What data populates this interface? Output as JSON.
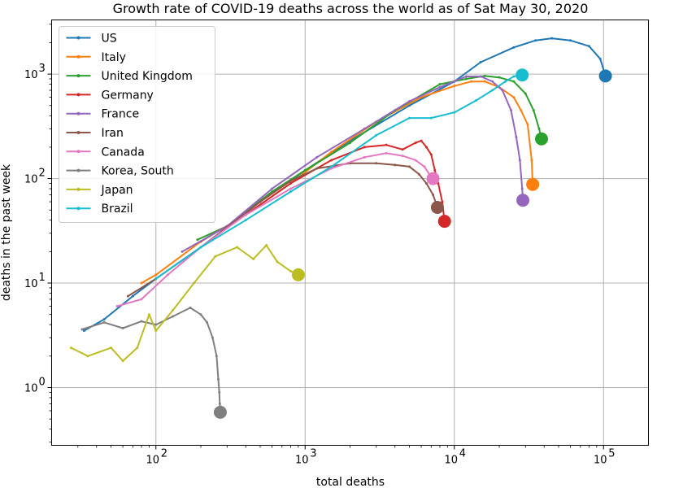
{
  "chart_data": {
    "type": "line",
    "title": "Growth rate of COVID-19 deaths across the world as of Sat May 30, 2020",
    "xlabel": "total deaths",
    "ylabel": "deaths in the past week",
    "xscale": "log",
    "yscale": "log",
    "xlim": [
      20,
      200000
    ],
    "ylim": [
      0.28,
      3300
    ],
    "x_ticks": [
      {
        "value": 100,
        "label": "10",
        "exp": "2"
      },
      {
        "value": 1000,
        "label": "10",
        "exp": "3"
      },
      {
        "value": 10000,
        "label": "10",
        "exp": "4"
      },
      {
        "value": 100000,
        "label": "10",
        "exp": "5"
      }
    ],
    "y_ticks": [
      {
        "value": 1,
        "label": "10",
        "exp": "0"
      },
      {
        "value": 10,
        "label": "10",
        "exp": "1"
      },
      {
        "value": 100,
        "label": "10",
        "exp": "2"
      },
      {
        "value": 1000,
        "label": "10",
        "exp": "3"
      }
    ],
    "grid": true,
    "legend_position": "top-left",
    "series": [
      {
        "name": "US",
        "color": "#1f77b4",
        "x": [
          33,
          45,
          70,
          100,
          200,
          500,
          1000,
          2000,
          5000,
          10000,
          15000,
          25000,
          35000,
          45000,
          60000,
          80000,
          95000,
          103000
        ],
        "y": [
          3.5,
          4.5,
          7.5,
          11,
          22,
          60,
          120,
          230,
          500,
          850,
          1300,
          1800,
          2100,
          2200,
          2100,
          1850,
          1400,
          960
        ]
      },
      {
        "name": "Italy",
        "color": "#ff7f0e",
        "x": [
          80,
          100,
          200,
          400,
          800,
          1500,
          3000,
          6000,
          10000,
          13000,
          16000,
          20000,
          25000,
          28000,
          31000,
          33000,
          33500
        ],
        "y": [
          10,
          12,
          25,
          45,
          90,
          180,
          350,
          600,
          770,
          850,
          850,
          750,
          600,
          450,
          330,
          150,
          88
        ]
      },
      {
        "name": "United Kingdom",
        "color": "#2ca02c",
        "x": [
          190,
          300,
          600,
          1000,
          2000,
          4000,
          8000,
          12000,
          16000,
          20000,
          25000,
          30000,
          34000,
          37000,
          38400
        ],
        "y": [
          26,
          35,
          75,
          120,
          220,
          450,
          800,
          900,
          960,
          930,
          850,
          650,
          450,
          300,
          240
        ]
      },
      {
        "name": "Germany",
        "color": "#d62728",
        "x": [
          200,
          400,
          800,
          1500,
          2500,
          3500,
          4500,
          5500,
          6000,
          6500,
          7000,
          7400,
          7800,
          8300,
          8600
        ],
        "y": [
          25,
          45,
          90,
          150,
          200,
          210,
          190,
          220,
          230,
          200,
          170,
          120,
          90,
          60,
          39
        ]
      },
      {
        "name": "France",
        "color": "#9467bd",
        "x": [
          150,
          300,
          600,
          1200,
          2500,
          5000,
          8000,
          12000,
          15000,
          18000,
          21000,
          24000,
          26000,
          27500,
          28500,
          28800
        ],
        "y": [
          20,
          35,
          80,
          160,
          300,
          550,
          750,
          950,
          950,
          850,
          700,
          450,
          250,
          150,
          80,
          62
        ]
      },
      {
        "name": "Iran",
        "color": "#8c564b",
        "x": [
          65,
          100,
          200,
          500,
          800,
          1200,
          2000,
          3000,
          4000,
          5000,
          5800,
          6500,
          7200,
          7700
        ],
        "y": [
          7.5,
          11,
          22,
          60,
          95,
          125,
          140,
          140,
          135,
          130,
          110,
          90,
          70,
          53
        ]
      },
      {
        "name": "Canada",
        "color": "#e377c2",
        "x": [
          55,
          80,
          120,
          200,
          400,
          800,
          1500,
          2500,
          3500,
          4500,
          5500,
          6300,
          6800,
          7200
        ],
        "y": [
          6,
          7,
          12,
          22,
          45,
          80,
          125,
          160,
          175,
          165,
          150,
          130,
          110,
          100
        ]
      },
      {
        "name": "Korea, South",
        "color": "#7f7f7f",
        "x": [
          32,
          45,
          60,
          80,
          100,
          130,
          170,
          200,
          220,
          240,
          255,
          262,
          266,
          268,
          270
        ],
        "y": [
          3.6,
          4.2,
          3.7,
          4.3,
          4.0,
          4.8,
          5.8,
          5.0,
          4.2,
          3.0,
          2.0,
          1.2,
          0.9,
          0.7,
          0.58
        ]
      },
      {
        "name": "Japan",
        "color": "#bcbd22",
        "x": [
          27,
          35,
          50,
          60,
          75,
          90,
          100,
          130,
          180,
          250,
          350,
          450,
          550,
          650,
          800,
          900
        ],
        "y": [
          2.4,
          2.0,
          2.4,
          1.8,
          2.4,
          5.0,
          3.5,
          5.5,
          10,
          18,
          22,
          17,
          23,
          16,
          13,
          12
        ]
      },
      {
        "name": "Brazil",
        "color": "#17becf",
        "x": [
          100,
          200,
          400,
          800,
          1500,
          3000,
          5000,
          7000,
          10000,
          14000,
          18000,
          22000,
          25000,
          28500
        ],
        "y": [
          11,
          22,
          40,
          75,
          130,
          260,
          380,
          380,
          430,
          560,
          700,
          850,
          950,
          980
        ]
      }
    ]
  }
}
